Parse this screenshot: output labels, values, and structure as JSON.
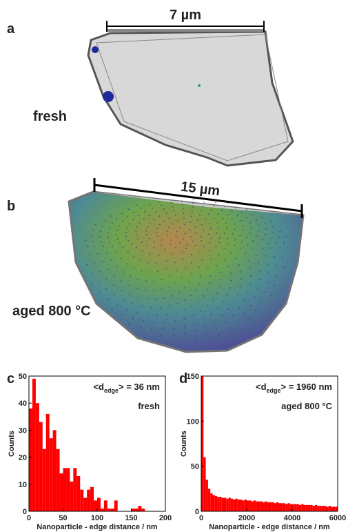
{
  "figure": {
    "panels": [
      {
        "label": "a",
        "scale": "7 µm",
        "caption": "fresh"
      },
      {
        "label": "b",
        "scale": "15 µm",
        "caption": "aged 800 °C"
      }
    ]
  },
  "chart_data": [
    {
      "type": "histogram",
      "panel_label": "c",
      "annotation": {
        "prefix": "<d",
        "sub": "edge",
        "suffix": "> = 36 nm"
      },
      "label": "fresh",
      "x_label": "Nanoparticle - edge distance / nm",
      "y_label": "Counts",
      "color": "#ff0000",
      "bins": [
        0,
        5,
        10,
        15,
        20,
        25,
        30,
        35,
        40,
        45,
        50,
        55,
        60,
        65,
        70,
        75,
        80,
        85,
        90,
        95,
        100,
        105,
        110,
        115,
        120,
        125,
        130,
        135,
        140,
        145,
        150,
        155,
        160,
        165,
        170
      ],
      "values": [
        38,
        49,
        40,
        33,
        23,
        36,
        27,
        30,
        23,
        14,
        16,
        16,
        11,
        16,
        13,
        8,
        5,
        8,
        9,
        4,
        5,
        1,
        4,
        1,
        1,
        4,
        0,
        0,
        0,
        0,
        1,
        1,
        2,
        1
      ],
      "xlim": [
        0,
        200
      ],
      "xticks": [
        0,
        50,
        100,
        150,
        200
      ],
      "ylim": [
        0,
        50
      ],
      "yticks": [
        0,
        10,
        20,
        30,
        40,
        50
      ]
    },
    {
      "type": "histogram",
      "panel_label": "d",
      "annotation": {
        "prefix": "<d",
        "sub": "edge",
        "suffix": "> = 1960 nm"
      },
      "label": "aged 800 °C",
      "x_label": "Nanoparticle - edge distance / nm",
      "y_label": "Counts",
      "color": "#ff0000",
      "bins": [
        0,
        100,
        200,
        300,
        400,
        500,
        600,
        700,
        800,
        900,
        1000,
        1100,
        1200,
        1300,
        1400,
        1500,
        1600,
        1700,
        1800,
        1900,
        2000,
        2100,
        2200,
        2300,
        2400,
        2500,
        2600,
        2700,
        2800,
        2900,
        3000,
        3100,
        3200,
        3300,
        3400,
        3500,
        3600,
        3700,
        3800,
        3900,
        4000,
        4100,
        4200,
        4300,
        4400,
        4500,
        4600,
        4700,
        4800,
        4900,
        5000,
        5100,
        5200,
        5300,
        5400,
        5500,
        5600,
        5700,
        5800,
        5900,
        6000
      ],
      "values": [
        150,
        60,
        35,
        25,
        20,
        18,
        17,
        16,
        16,
        15,
        15,
        14,
        15,
        14,
        13,
        14,
        13,
        13,
        12,
        13,
        12,
        12,
        11,
        12,
        11,
        11,
        11,
        10,
        11,
        10,
        10,
        10,
        9,
        10,
        9,
        9,
        9,
        8,
        9,
        8,
        8,
        8,
        8,
        7,
        8,
        7,
        7,
        7,
        7,
        6,
        7,
        6,
        6,
        6,
        6,
        5,
        6,
        5,
        5,
        5
      ],
      "xlim": [
        0,
        6000
      ],
      "xticks": [
        0,
        2000,
        4000,
        6000
      ],
      "ylim": [
        0,
        150
      ],
      "yticks": [
        0,
        50,
        100,
        150
      ]
    }
  ]
}
